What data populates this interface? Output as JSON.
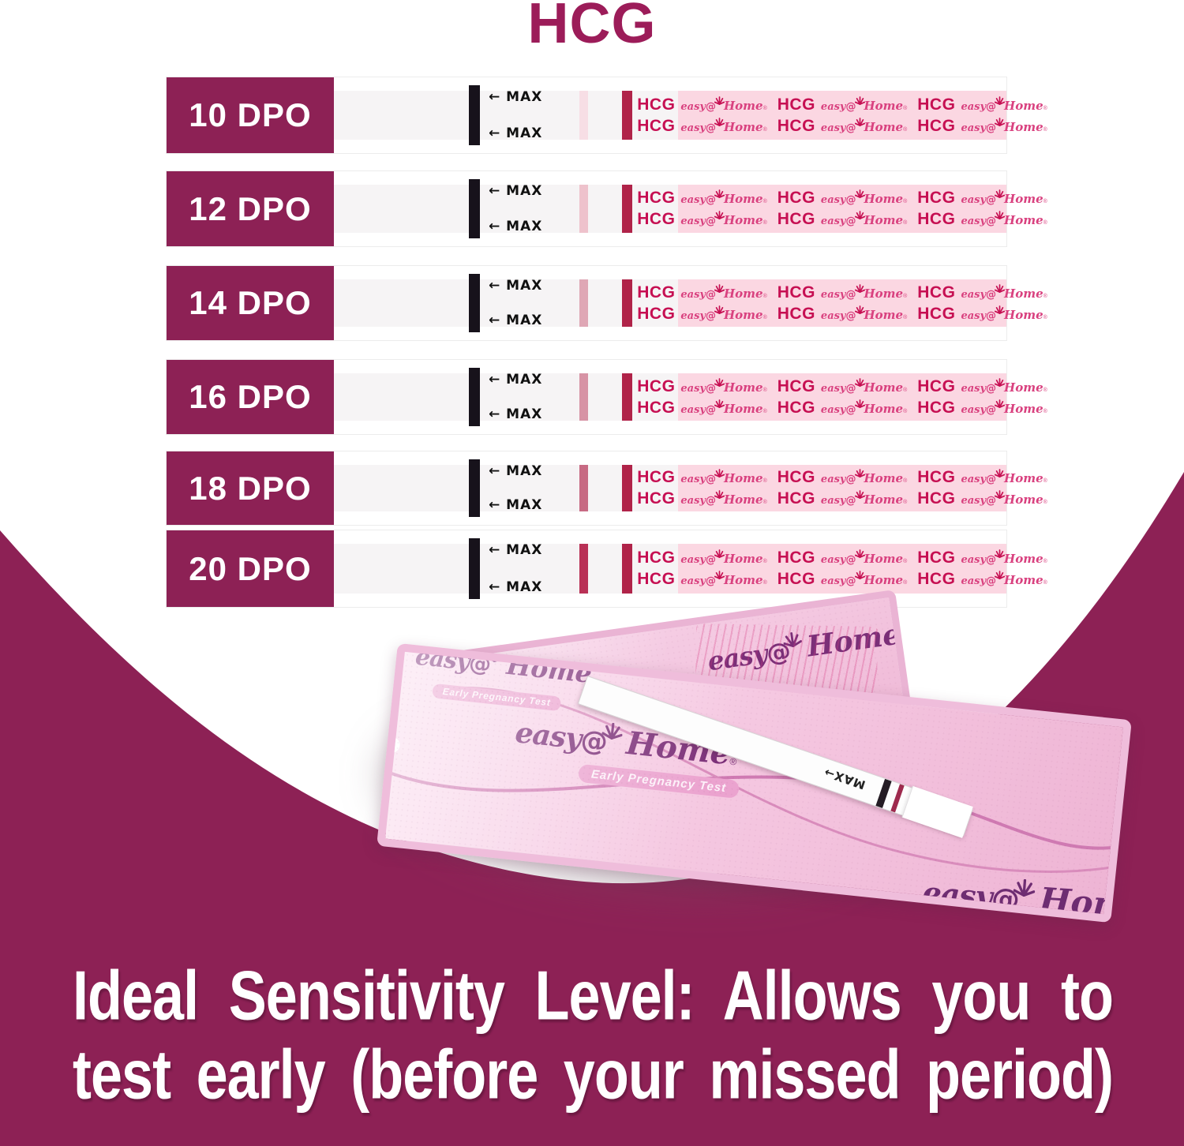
{
  "title": "HCG",
  "rows": [
    {
      "dpo": "10 DPO",
      "test_line_color": "#F7DEE5"
    },
    {
      "dpo": "12 DPO",
      "test_line_color": "#EEC2CC"
    },
    {
      "dpo": "14 DPO",
      "test_line_color": "#DFA7B5"
    },
    {
      "dpo": "16 DPO",
      "test_line_color": "#D793A5"
    },
    {
      "dpo": "18 DPO",
      "test_line_color": "#C76A83"
    },
    {
      "dpo": "20 DPO",
      "test_line_color": "#B93156"
    }
  ],
  "strip": {
    "max_label": "MAX",
    "arrow": "←",
    "control_line_color": "#B02349",
    "band": {
      "hcg": "HCG",
      "brand_easy": "easy",
      "brand_at": "@",
      "brand_home": "Home",
      "reg": "®",
      "pairs_per_row": 3,
      "text_rows": 2
    }
  },
  "pouch": {
    "brand_easy": "easy",
    "brand_at": "@",
    "brand_home": "Home",
    "reg": "®",
    "tagline": "Early Pregnancy Test",
    "strip_max": "MAX",
    "strip_arrow": "→"
  },
  "footer": {
    "line1": "Ideal Sensitivity Level: Allows you to",
    "line2": "test early (before your missed period)"
  },
  "colors": {
    "maroon": "#8D2155",
    "title_color": "#9C1C59",
    "band_pink": "#FBD7E2",
    "hcg_text": "#C60F52",
    "strip_bg": "#F6F4F5",
    "control_line": "#B02349"
  }
}
